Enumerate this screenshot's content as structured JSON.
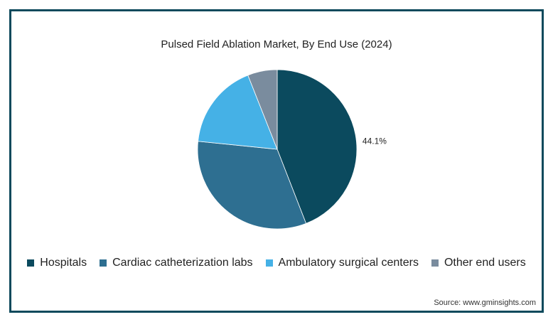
{
  "chart_data": {
    "type": "pie",
    "title": "Pulsed Field Ablation Market, By End Use (2024)",
    "categories": [
      "Hospitals",
      "Cardiac catheterization labs",
      "Ambulatory surgical centers",
      "Other end users"
    ],
    "values": [
      44.1,
      32.5,
      17.4,
      6.0
    ],
    "colors": [
      "#0b4a5e",
      "#2e6f91",
      "#45b1e6",
      "#7a8c9e"
    ],
    "data_labels": [
      "44.1%",
      "",
      "",
      ""
    ],
    "legend_position": "bottom"
  },
  "source": "Source: www.gminsights.com"
}
